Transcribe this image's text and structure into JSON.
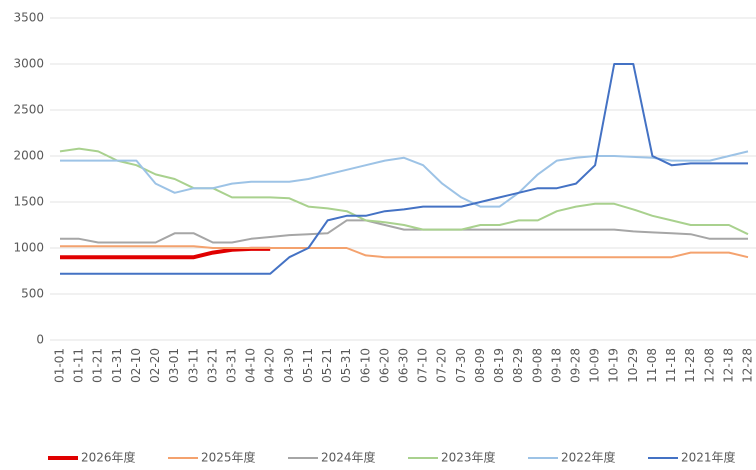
{
  "chart_data": {
    "type": "line",
    "categories": [
      "01-01",
      "01-11",
      "01-21",
      "01-31",
      "02-10",
      "02-20",
      "03-01",
      "03-11",
      "03-21",
      "03-31",
      "04-10",
      "04-20",
      "04-30",
      "05-11",
      "05-21",
      "05-31",
      "06-10",
      "06-20",
      "06-30",
      "07-10",
      "07-20",
      "07-30",
      "08-09",
      "08-19",
      "08-29",
      "09-08",
      "09-18",
      "09-28",
      "10-09",
      "10-19",
      "10-29",
      "11-08",
      "11-18",
      "11-28",
      "12-08",
      "12-18",
      "12-28"
    ],
    "series": [
      {
        "name": "2026年度",
        "color": "#e00000",
        "values": [
          900,
          900,
          900,
          900,
          900,
          900,
          900,
          900,
          950,
          980,
          990,
          990,
          null,
          null,
          null,
          null,
          null,
          null,
          null,
          null,
          null,
          null,
          null,
          null,
          null,
          null,
          null,
          null,
          null,
          null,
          null,
          null,
          null,
          null,
          null,
          null,
          null
        ]
      },
      {
        "name": "2025年度",
        "color": "#f4a26e",
        "values": [
          1020,
          1020,
          1020,
          1020,
          1020,
          1020,
          1020,
          1020,
          1000,
          1000,
          1000,
          1000,
          1000,
          1000,
          1000,
          1000,
          920,
          900,
          900,
          900,
          900,
          900,
          900,
          900,
          900,
          900,
          900,
          900,
          900,
          900,
          900,
          900,
          900,
          950,
          950,
          950,
          900
        ]
      },
      {
        "name": "2024年度",
        "color": "#a6a6a6",
        "values": [
          1100,
          1100,
          1060,
          1060,
          1060,
          1060,
          1160,
          1160,
          1060,
          1060,
          1100,
          1120,
          1140,
          1150,
          1160,
          1300,
          1300,
          1250,
          1200,
          1200,
          1200,
          1200,
          1200,
          1200,
          1200,
          1200,
          1200,
          1200,
          1200,
          1200,
          1180,
          1170,
          1160,
          1150,
          1100,
          1100,
          1100
        ]
      },
      {
        "name": "2023年度",
        "color": "#a9d18e",
        "values": [
          2050,
          2080,
          2050,
          1950,
          1900,
          1800,
          1750,
          1650,
          1650,
          1550,
          1550,
          1550,
          1540,
          1450,
          1430,
          1400,
          1300,
          1280,
          1250,
          1200,
          1200,
          1200,
          1250,
          1250,
          1300,
          1300,
          1400,
          1450,
          1480,
          1480,
          1420,
          1350,
          1300,
          1250,
          1250,
          1250,
          1150
        ]
      },
      {
        "name": "2022年度",
        "color": "#9dc3e6",
        "values": [
          1950,
          1950,
          1950,
          1950,
          1950,
          1700,
          1600,
          1650,
          1650,
          1700,
          1720,
          1720,
          1720,
          1750,
          1800,
          1850,
          1900,
          1950,
          1980,
          1900,
          1700,
          1550,
          1450,
          1450,
          1600,
          1800,
          1950,
          1980,
          2000,
          2000,
          1990,
          1980,
          1950,
          1950,
          1950,
          2000,
          2050
        ]
      },
      {
        "name": "2021年度",
        "color": "#4472c4",
        "values": [
          720,
          720,
          720,
          720,
          720,
          720,
          720,
          720,
          720,
          720,
          720,
          720,
          900,
          1000,
          1300,
          1350,
          1350,
          1400,
          1420,
          1450,
          1450,
          1450,
          1500,
          1550,
          1600,
          1650,
          1650,
          1700,
          1900,
          3000,
          3000,
          2000,
          1900,
          1920,
          1920,
          1920,
          1920
        ]
      }
    ],
    "ylim": [
      0,
      3500
    ],
    "yticks": [
      0,
      500,
      1000,
      1500,
      2000,
      2500,
      3000,
      3500
    ],
    "grid": true,
    "legend": "bottom"
  }
}
